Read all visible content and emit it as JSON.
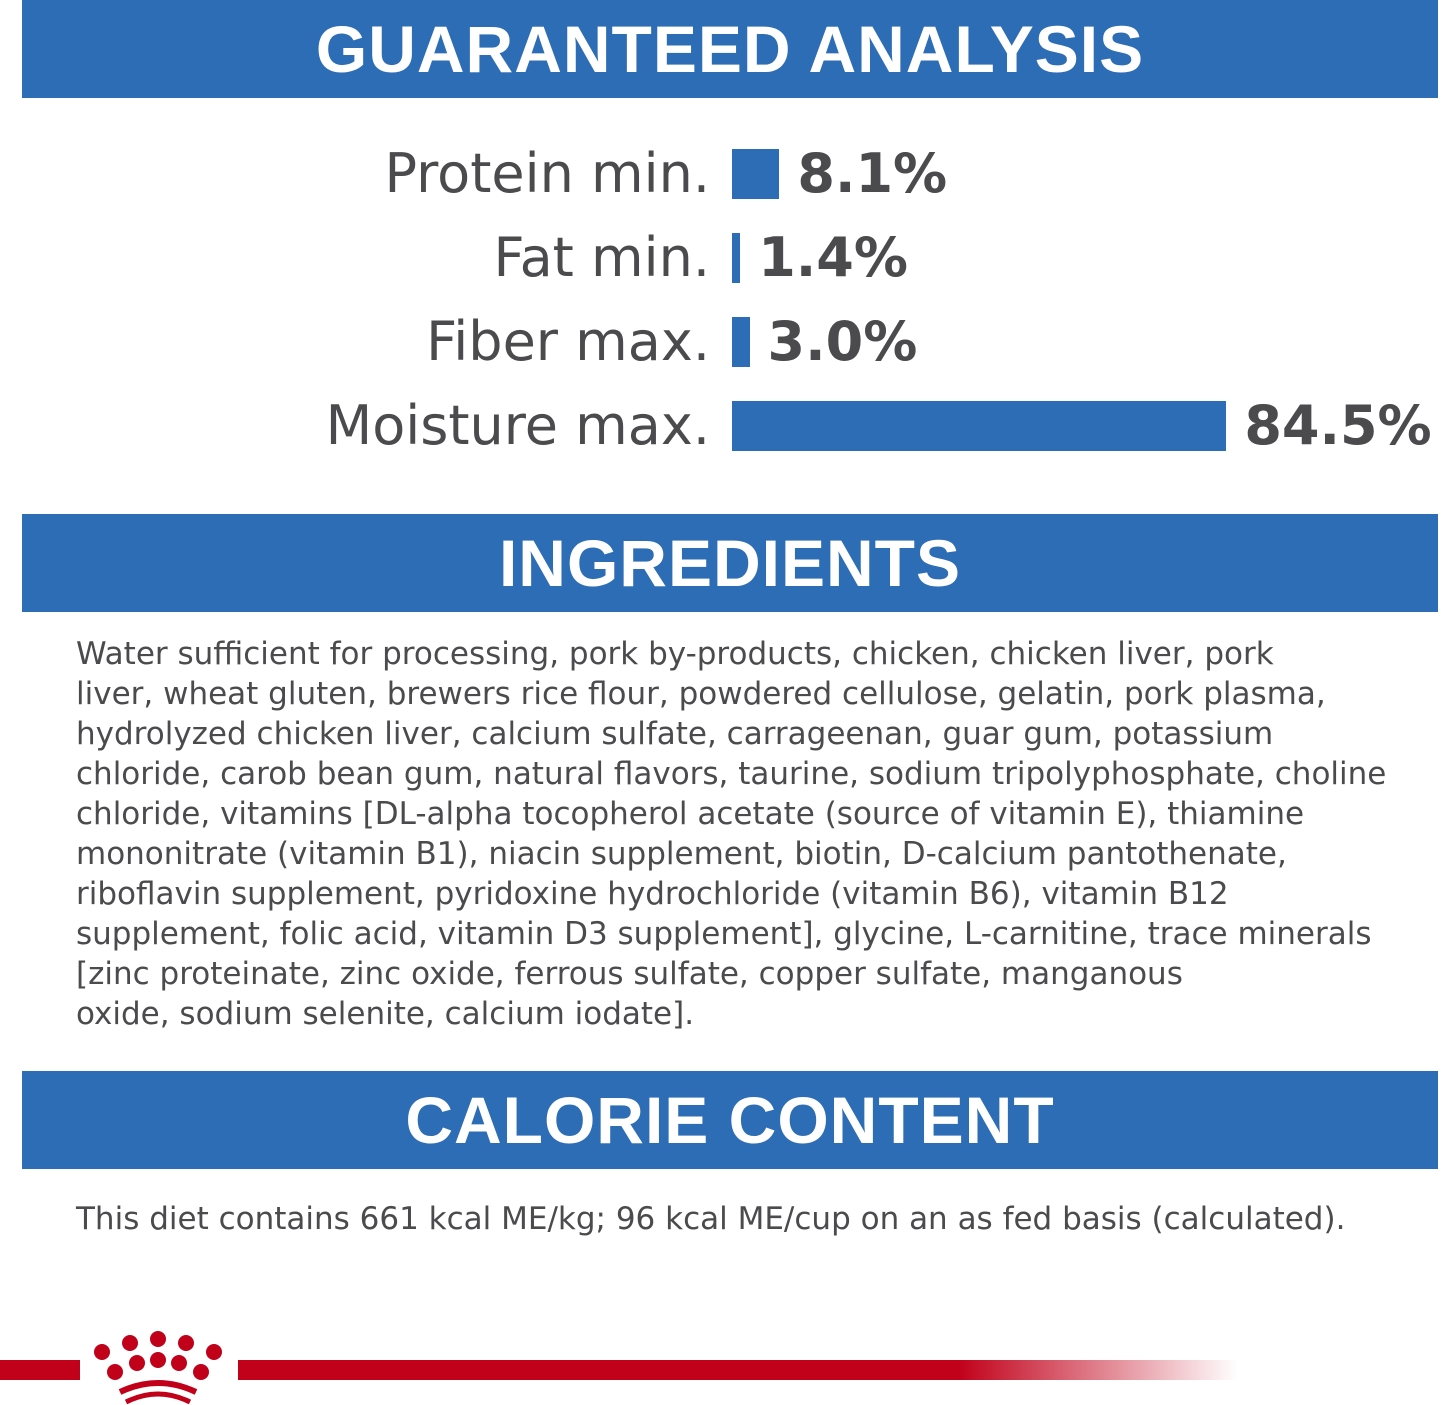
{
  "sections": {
    "analysis_title": "GUARANTEED ANALYSIS",
    "ingredients_title": "INGREDIENTS",
    "calorie_title": "CALORIE CONTENT"
  },
  "guaranteed_analysis": [
    {
      "label": "Protein min.",
      "value": 8.1,
      "display": "8.1%"
    },
    {
      "label": "Fat min.",
      "value": 1.4,
      "display": "1.4%"
    },
    {
      "label": "Fiber max.",
      "value": 3.0,
      "display": "3.0%"
    },
    {
      "label": "Moisture max.",
      "value": 84.5,
      "display": "84.5%"
    }
  ],
  "ingredients_lines": [
    "Water sufficient for processing, pork by-products, chicken, chicken liver, pork",
    "liver, wheat gluten, brewers rice flour, powdered cellulose, gelatin, pork plasma,",
    "hydrolyzed chicken liver, calcium sulfate, carrageenan, guar gum, potassium",
    "chloride, carob bean gum, natural flavors, taurine, sodium tripolyphosphate, choline",
    "chloride, vitamins [DL-alpha tocopherol acetate (source of vitamin E), thiamine",
    "mononitrate (vitamin B1), niacin supplement, biotin, D-calcium pantothenate,",
    "riboflavin supplement, pyridoxine hydrochloride (vitamin B6), vitamin B12",
    "supplement, folic acid, vitamin D3 supplement], glycine, L-carnitine, trace minerals",
    "[zinc proteinate, zinc oxide, ferrous sulfate, copper sulfate, manganous",
    "oxide, sodium selenite, calcium iodate]."
  ],
  "calorie_text": "This diet contains 661 kcal ME/kg; 96 kcal ME/cup on an as fed basis (calculated).",
  "colors": {
    "accent_blue": "#2d6db5",
    "brand_red": "#c1001a",
    "text": "#4b4b4d"
  },
  "logo": {
    "icon": "crown-icon"
  }
}
